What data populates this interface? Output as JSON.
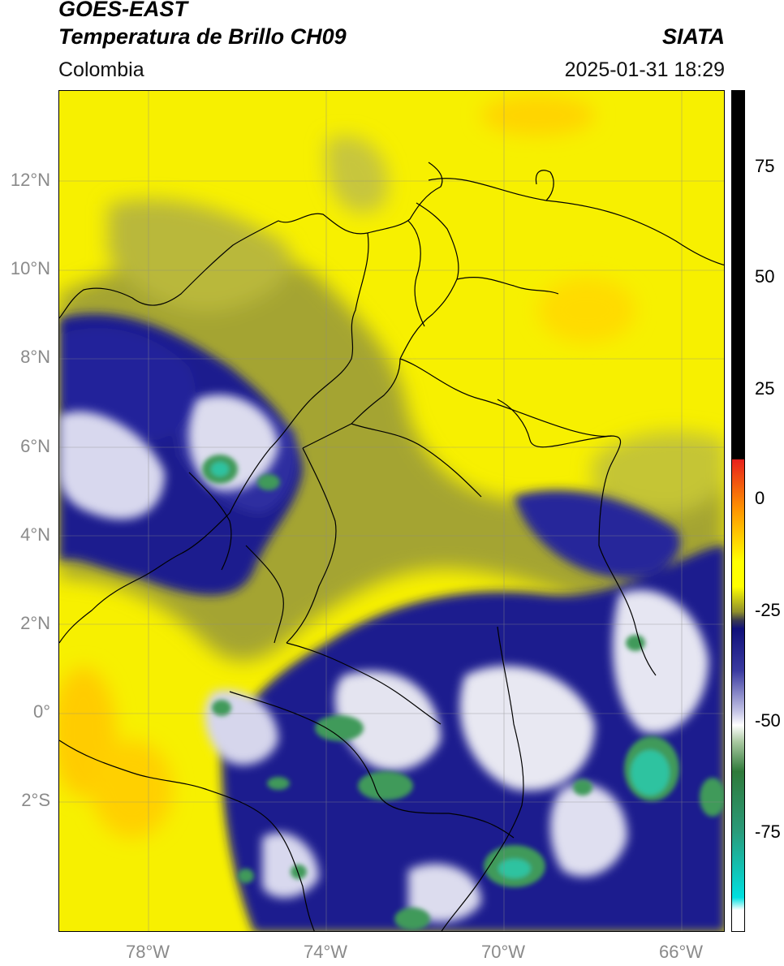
{
  "header": {
    "satellite": "GOES-EAST",
    "product": "Temperatura de Brillo CH09",
    "region": "Colombia",
    "agency": "SIATA",
    "datetime": "2025-01-31 18:29"
  },
  "map": {
    "lat_ticks": [
      "12°N",
      "10°N",
      "8°N",
      "6°N",
      "4°N",
      "2°N",
      "0°",
      "2°S"
    ],
    "lon_ticks": [
      "78°W",
      "74°W",
      "70°W",
      "66°W"
    ],
    "colors": {
      "warm": "#ffff00",
      "olive": "#a8a82a",
      "deep": "#1c1c8e",
      "white": "#f2f2f8",
      "green": "#3f9a5a",
      "teal": "#2fc3a0",
      "orange": "#ffd000"
    }
  },
  "colorbar": {
    "ticks": [
      "75",
      "50",
      "25",
      "0",
      "-25",
      "-50",
      "-75"
    ],
    "colors": {
      "black": "#000000",
      "red": "#e8221c",
      "orange": "#ff9800",
      "yellow": "#ffff00",
      "olive": "#8f8f2c",
      "navy": "#10107a",
      "white": "#ffffff",
      "green": "#2f7a3a",
      "cyan": "#00e0e0"
    }
  }
}
